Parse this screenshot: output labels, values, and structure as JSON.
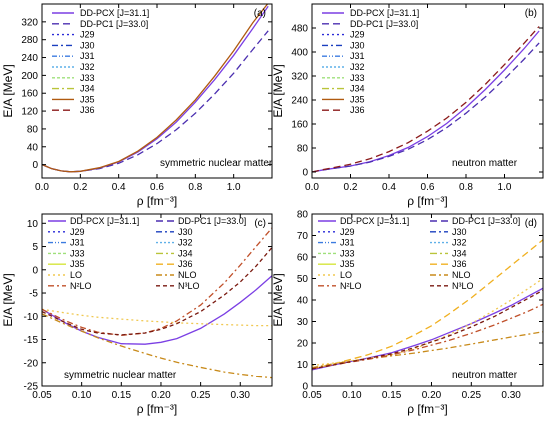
{
  "figure": {
    "colors": {
      "DD-PCX": "#7b3fe4",
      "DD-PC1": "#4b2fb0",
      "J29": "#2a2ad8",
      "J30": "#1a3fbf",
      "J31": "#3b7be0",
      "J32": "#5fb0e8",
      "J33": "#9fe07a",
      "J34": "#b9c43a",
      "J35": "#d4e43a",
      "J36": "#f0b020",
      "LO": "#f0c850",
      "NLO": "#c88a1a",
      "N2LO": "#c0502a",
      "N3LO": "#7a1a10",
      "J35_top": "#b05a10",
      "J36_top": "#8b1a1a"
    }
  },
  "chart_data": [
    {
      "type": "line",
      "panel_label": "(a)",
      "annotation": "symmetric nuclear matter",
      "xlabel": "ρ [fm⁻³]",
      "ylabel": "E/A [MeV]",
      "xlim": [
        0.0,
        1.2
      ],
      "ylim": [
        -30,
        360
      ],
      "xticks": [
        "0.0",
        "0.2",
        "0.4",
        "0.6",
        "0.8",
        "1.0"
      ],
      "yticks": [
        "0",
        "40",
        "80",
        "120",
        "160",
        "200",
        "240",
        "280",
        "320"
      ],
      "legend": [
        "DD-PCX [J=31.1]",
        "DD-PC1 [J=33.0]",
        "J29",
        "J30",
        "J31",
        "J32",
        "J33",
        "J34",
        "J35",
        "J36"
      ],
      "x": [
        0.0,
        0.05,
        0.1,
        0.15,
        0.2,
        0.3,
        0.4,
        0.5,
        0.6,
        0.7,
        0.8,
        0.9,
        1.0,
        1.1,
        1.18
      ],
      "series": [
        {
          "name": "DD-PCX [J=31.1]",
          "values": [
            0,
            -9,
            -14,
            -16,
            -15,
            -8,
            6,
            28,
            58,
            95,
            140,
            190,
            245,
            305,
            355
          ]
        },
        {
          "name": "DD-PC1 [J=33.0]",
          "values": [
            0,
            -9,
            -14,
            -16,
            -15,
            -9,
            3,
            22,
            47,
            78,
            115,
            158,
            205,
            258,
            300
          ]
        },
        {
          "name": "J35",
          "values": [
            0,
            -9,
            -14,
            -16,
            -15,
            -7,
            7,
            30,
            61,
            100,
            145,
            198,
            255,
            318,
            362
          ]
        }
      ]
    },
    {
      "type": "line",
      "panel_label": "(b)",
      "annotation": "neutron matter",
      "xlabel": "ρ [fm⁻³]",
      "ylabel": "E/A [MeV]",
      "xlim": [
        0.0,
        1.2
      ],
      "ylim": [
        -20,
        560
      ],
      "xticks": [
        "0.0",
        "0.2",
        "0.4",
        "0.6",
        "0.8",
        "1.0"
      ],
      "yticks": [
        "0",
        "80",
        "160",
        "240",
        "320",
        "400",
        "480"
      ],
      "legend": [
        "DD-PCX [J=31.1]",
        "DD-PC1 [J=33.0]",
        "J29",
        "J30",
        "J31",
        "J32",
        "J33",
        "J34",
        "J35",
        "J36"
      ],
      "x": [
        0.0,
        0.05,
        0.1,
        0.2,
        0.3,
        0.4,
        0.5,
        0.6,
        0.7,
        0.8,
        0.9,
        1.0,
        1.1,
        1.18
      ],
      "series": [
        {
          "name": "DD-PCX [J=31.1]",
          "values": [
            0,
            6,
            11,
            20,
            34,
            55,
            82,
            118,
            162,
            215,
            275,
            340,
            410,
            470
          ]
        },
        {
          "name": "DD-PC1 [J=33.0]",
          "values": [
            0,
            6,
            11,
            20,
            33,
            52,
            76,
            108,
            148,
            196,
            250,
            310,
            375,
            430
          ]
        },
        {
          "name": "J36",
          "values": [
            0,
            7,
            13,
            26,
            44,
            68,
            98,
            136,
            180,
            232,
            292,
            358,
            428,
            485
          ]
        }
      ]
    },
    {
      "type": "line",
      "panel_label": "(c)",
      "annotation": "symmetric nuclear matter",
      "xlabel": "ρ [fm⁻³]",
      "ylabel": "E/A [MeV]",
      "xlim": [
        0.05,
        0.34
      ],
      "ylim": [
        -25,
        12
      ],
      "xticks": [
        "0.05",
        "0.10",
        "0.15",
        "0.20",
        "0.25",
        "0.30"
      ],
      "yticks": [
        "-25",
        "-20",
        "-15",
        "-10",
        "-5",
        "0",
        "5",
        "10"
      ],
      "legend": [
        "DD-PCX [J=31.1]",
        "DD-PC1 [J=33.0]",
        "J29",
        "J30",
        "J31",
        "J32",
        "J33",
        "J34",
        "J35",
        "J36",
        "LO",
        "NLO",
        "N²LO",
        "N³LO"
      ],
      "x": [
        0.05,
        0.08,
        0.1,
        0.12,
        0.15,
        0.18,
        0.2,
        0.22,
        0.25,
        0.28,
        0.3,
        0.32,
        0.34
      ],
      "series": [
        {
          "name": "DD-PCX [J=31.1]",
          "values": [
            -8.5,
            -11.5,
            -13.2,
            -14.5,
            -15.9,
            -16.0,
            -15.6,
            -14.8,
            -12.6,
            -9.5,
            -7.0,
            -4.3,
            -1.3
          ]
        },
        {
          "name": "LO",
          "values": [
            -8.5,
            -9.3,
            -9.8,
            -10.2,
            -10.6,
            -11.0,
            -11.2,
            -11.4,
            -11.6,
            -11.8,
            -11.9,
            -12.0,
            -12.0
          ]
        },
        {
          "name": "NLO",
          "values": [
            -9.5,
            -11.8,
            -13.2,
            -14.6,
            -16.4,
            -18.0,
            -19.0,
            -19.9,
            -21.0,
            -22.0,
            -22.5,
            -22.9,
            -23.2
          ]
        },
        {
          "name": "N²LO",
          "values": [
            -8.5,
            -11.0,
            -12.4,
            -13.4,
            -14.1,
            -13.6,
            -12.6,
            -11.0,
            -7.6,
            -2.8,
            1.0,
            5.0,
            9.0
          ]
        },
        {
          "name": "N³LO",
          "values": [
            -9.0,
            -11.4,
            -12.8,
            -13.6,
            -14.0,
            -13.6,
            -12.8,
            -11.6,
            -9.0,
            -5.4,
            -2.6,
            0.8,
            4.8
          ]
        }
      ]
    },
    {
      "type": "line",
      "panel_label": "(d)",
      "annotation": "neutron matter",
      "xlabel": "ρ [fm⁻³]",
      "ylabel": "E/A [MeV]",
      "xlim": [
        0.05,
        0.34
      ],
      "ylim": [
        0,
        80
      ],
      "xticks": [
        "0.05",
        "0.10",
        "0.15",
        "0.20",
        "0.25",
        "0.30"
      ],
      "yticks": [
        "0",
        "10",
        "20",
        "30",
        "40",
        "50",
        "60",
        "70",
        "80"
      ],
      "legend": [
        "DD-PCX [J=31.1]",
        "DD-PC1 [J=33.0]",
        "J29",
        "J30",
        "J31",
        "J32",
        "J33",
        "J34",
        "J35",
        "J36",
        "LO",
        "NLO",
        "N²LO",
        "N³LO"
      ],
      "x": [
        0.05,
        0.08,
        0.1,
        0.12,
        0.15,
        0.18,
        0.2,
        0.22,
        0.25,
        0.28,
        0.3,
        0.32,
        0.34
      ],
      "series": [
        {
          "name": "DD-PCX [J=31.1]",
          "values": [
            7.5,
            10.0,
            11.5,
            13.0,
            15.5,
            19.0,
            21.5,
            24.5,
            29.0,
            34.0,
            37.5,
            41.5,
            45.5
          ]
        },
        {
          "name": "J36",
          "values": [
            8.0,
            10.5,
            12.5,
            14.5,
            18.5,
            24.0,
            28.0,
            33.0,
            41.0,
            50.0,
            56.0,
            62.0,
            68.0
          ]
        },
        {
          "name": "LO",
          "values": [
            9.5,
            10.8,
            11.8,
            12.8,
            14.5,
            17.5,
            20.5,
            23.5,
            29.0,
            35.5,
            40.0,
            45.0,
            50.0
          ]
        },
        {
          "name": "NLO",
          "values": [
            8.5,
            10.5,
            11.6,
            12.6,
            14.0,
            15.4,
            16.5,
            17.6,
            19.5,
            21.5,
            22.8,
            24.0,
            25.2
          ]
        },
        {
          "name": "N²LO",
          "values": [
            8.0,
            10.0,
            11.2,
            12.4,
            14.5,
            17.0,
            19.0,
            21.0,
            24.5,
            28.5,
            31.5,
            34.5,
            38.0
          ]
        },
        {
          "name": "N³LO",
          "values": [
            8.0,
            10.0,
            11.4,
            12.8,
            15.0,
            18.0,
            20.5,
            23.0,
            27.5,
            32.5,
            36.5,
            40.5,
            44.5
          ]
        }
      ]
    }
  ]
}
